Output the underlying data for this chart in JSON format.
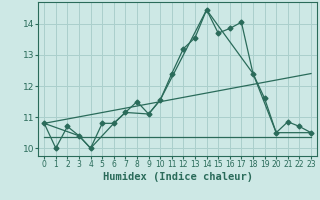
{
  "xlabel": "Humidex (Indice chaleur)",
  "background_color": "#cde8e5",
  "grid_color": "#aacfcc",
  "line_color": "#2a6b5a",
  "xlim": [
    -0.5,
    23.5
  ],
  "ylim": [
    9.75,
    14.7
  ],
  "x_ticks": [
    0,
    1,
    2,
    3,
    4,
    5,
    6,
    7,
    8,
    9,
    10,
    11,
    12,
    13,
    14,
    15,
    16,
    17,
    18,
    19,
    20,
    21,
    22,
    23
  ],
  "y_ticks": [
    10,
    11,
    12,
    13,
    14
  ],
  "line1_x": [
    0,
    1,
    2,
    3,
    4,
    5,
    6,
    7,
    8,
    9,
    10,
    11,
    12,
    13,
    14,
    15,
    16,
    17,
    18,
    19,
    20,
    21,
    22,
    23
  ],
  "line1_y": [
    10.8,
    10.0,
    10.7,
    10.4,
    10.0,
    10.8,
    10.8,
    11.15,
    11.5,
    11.1,
    11.55,
    12.4,
    13.2,
    13.55,
    14.45,
    13.7,
    13.85,
    14.05,
    12.4,
    11.6,
    10.5,
    10.85,
    10.7,
    10.5
  ],
  "line2_x": [
    0,
    3,
    4,
    6,
    7,
    9,
    10,
    14,
    18,
    20,
    23
  ],
  "line2_y": [
    10.8,
    10.4,
    10.0,
    10.8,
    11.15,
    11.1,
    11.55,
    14.45,
    12.4,
    10.5,
    10.5
  ],
  "line3_x": [
    0,
    23
  ],
  "line3_y": [
    10.8,
    12.4
  ],
  "line4_x": [
    0,
    23
  ],
  "line4_y": [
    10.35,
    10.35
  ],
  "marker_style": "D",
  "marker_size": 2.5,
  "font_size": 7.5
}
